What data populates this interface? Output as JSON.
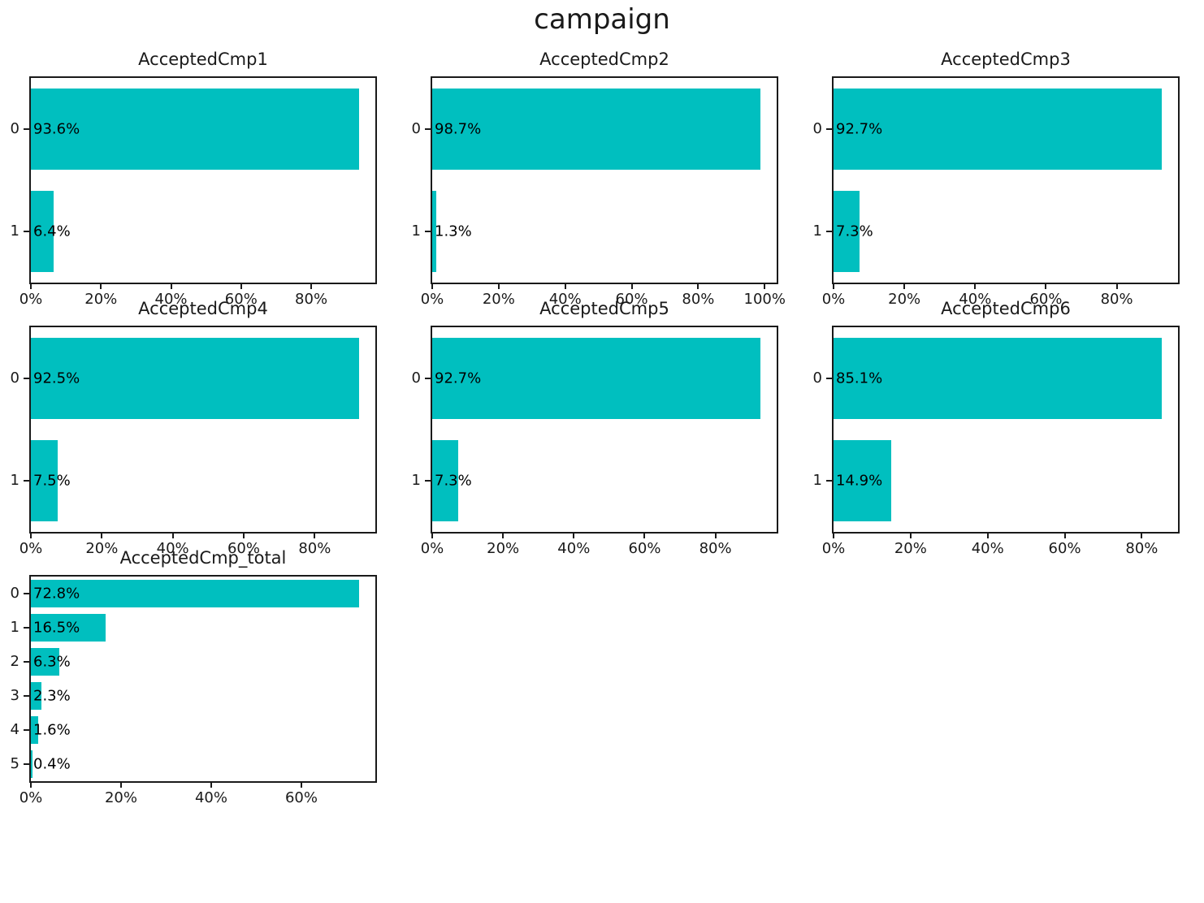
{
  "title": "campaign",
  "colors": {
    "bar": "#00bfbf",
    "axis": "#1a1a1a",
    "text": "#000000",
    "background": "#ffffff"
  },
  "chart_data": [
    {
      "type": "bar",
      "orientation": "horizontal",
      "title": "AcceptedCmp1",
      "categories": [
        "0",
        "1"
      ],
      "values": [
        93.6,
        6.4
      ],
      "bar_labels": [
        "93.6%",
        "6.4%"
      ],
      "xlim": [
        0,
        98.3
      ],
      "xtick_values": [
        0,
        20,
        40,
        60,
        80
      ],
      "xtick_labels": [
        "0%",
        "20%",
        "40%",
        "60%",
        "80%"
      ],
      "grid": false,
      "legend": "none"
    },
    {
      "type": "bar",
      "orientation": "horizontal",
      "title": "AcceptedCmp2",
      "categories": [
        "0",
        "1"
      ],
      "values": [
        98.7,
        1.3
      ],
      "bar_labels": [
        "98.7%",
        "1.3%"
      ],
      "xlim": [
        0,
        103.6
      ],
      "xtick_values": [
        0,
        20,
        40,
        60,
        80,
        100
      ],
      "xtick_labels": [
        "0%",
        "20%",
        "40%",
        "60%",
        "80%",
        "100%"
      ],
      "grid": false,
      "legend": "none"
    },
    {
      "type": "bar",
      "orientation": "horizontal",
      "title": "AcceptedCmp3",
      "categories": [
        "0",
        "1"
      ],
      "values": [
        92.7,
        7.3
      ],
      "bar_labels": [
        "92.7%",
        "7.3%"
      ],
      "xlim": [
        0,
        97.3
      ],
      "xtick_values": [
        0,
        20,
        40,
        60,
        80
      ],
      "xtick_labels": [
        "0%",
        "20%",
        "40%",
        "60%",
        "80%"
      ],
      "grid": false,
      "legend": "none"
    },
    {
      "type": "bar",
      "orientation": "horizontal",
      "title": "AcceptedCmp4",
      "categories": [
        "0",
        "1"
      ],
      "values": [
        92.5,
        7.5
      ],
      "bar_labels": [
        "92.5%",
        "7.5%"
      ],
      "xlim": [
        0,
        97.1
      ],
      "xtick_values": [
        0,
        20,
        40,
        60,
        80
      ],
      "xtick_labels": [
        "0%",
        "20%",
        "40%",
        "60%",
        "80%"
      ],
      "grid": false,
      "legend": "none"
    },
    {
      "type": "bar",
      "orientation": "horizontal",
      "title": "AcceptedCmp5",
      "categories": [
        "0",
        "1"
      ],
      "values": [
        92.7,
        7.3
      ],
      "bar_labels": [
        "92.7%",
        "7.3%"
      ],
      "xlim": [
        0,
        97.3
      ],
      "xtick_values": [
        0,
        20,
        40,
        60,
        80
      ],
      "xtick_labels": [
        "0%",
        "20%",
        "40%",
        "60%",
        "80%"
      ],
      "grid": false,
      "legend": "none"
    },
    {
      "type": "bar",
      "orientation": "horizontal",
      "title": "AcceptedCmp6",
      "categories": [
        "0",
        "1"
      ],
      "values": [
        85.1,
        14.9
      ],
      "bar_labels": [
        "85.1%",
        "14.9%"
      ],
      "xlim": [
        0,
        89.4
      ],
      "xtick_values": [
        0,
        20,
        40,
        60,
        80
      ],
      "xtick_labels": [
        "0%",
        "20%",
        "40%",
        "60%",
        "80%"
      ],
      "grid": false,
      "legend": "none"
    },
    {
      "type": "bar",
      "orientation": "horizontal",
      "title": "AcceptedCmp_total",
      "categories": [
        "0",
        "1",
        "2",
        "3",
        "4",
        "5"
      ],
      "values": [
        72.8,
        16.5,
        6.3,
        2.3,
        1.6,
        0.4
      ],
      "bar_labels": [
        "72.8%",
        "16.5%",
        "6.3%",
        "2.3%",
        "1.6%",
        "0.4%"
      ],
      "xlim": [
        0,
        76.4
      ],
      "xtick_values": [
        0,
        20,
        40,
        60
      ],
      "xtick_labels": [
        "0%",
        "20%",
        "40%",
        "60%"
      ],
      "grid": false,
      "legend": "none"
    }
  ]
}
